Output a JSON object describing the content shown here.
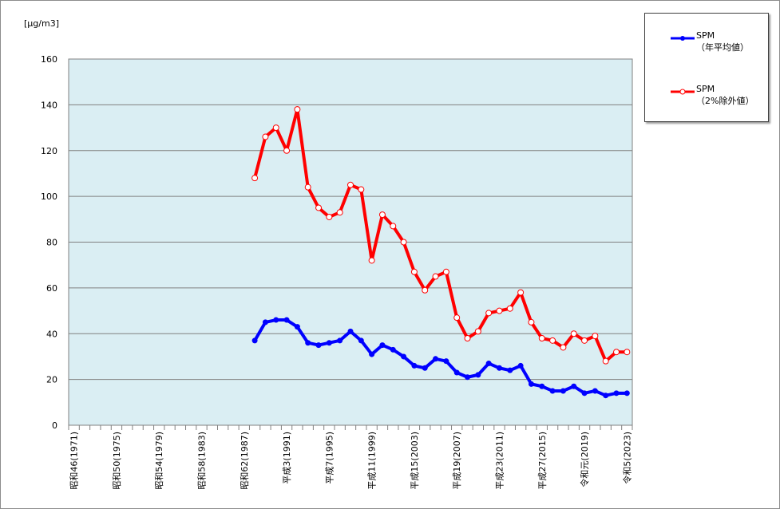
{
  "chart_data": {
    "type": "line",
    "unit_label": "[μg/m3]",
    "ylim": [
      0,
      160
    ],
    "yticks": [
      0,
      20,
      40,
      60,
      80,
      100,
      120,
      140,
      160
    ],
    "grid": true,
    "legend_position": "top-right",
    "x_start_year": 1971,
    "x_end_year": 2023,
    "x_tick_labels": [
      {
        "year": 1971,
        "label": "昭和46(1971)"
      },
      {
        "year": 1975,
        "label": "昭和50(1975)"
      },
      {
        "year": 1979,
        "label": "昭和54(1979)"
      },
      {
        "year": 1983,
        "label": "昭和58(1983)"
      },
      {
        "year": 1987,
        "label": "昭和62(1987)"
      },
      {
        "year": 1991,
        "label": "平成3(1991)"
      },
      {
        "year": 1995,
        "label": "平成7(1995)"
      },
      {
        "year": 1999,
        "label": "平成11(1999)"
      },
      {
        "year": 2003,
        "label": "平成15(2003)"
      },
      {
        "year": 2007,
        "label": "平成19(2007)"
      },
      {
        "year": 2011,
        "label": "平成23(2011)"
      },
      {
        "year": 2015,
        "label": "平成27(2015)"
      },
      {
        "year": 2019,
        "label": "令和元(2019)"
      },
      {
        "year": 2023,
        "label": "令和5(2023)"
      }
    ],
    "x": [
      1988,
      1989,
      1990,
      1991,
      1992,
      1993,
      1994,
      1995,
      1996,
      1997,
      1998,
      1999,
      2000,
      2001,
      2002,
      2003,
      2004,
      2005,
      2006,
      2007,
      2008,
      2009,
      2010,
      2011,
      2012,
      2013,
      2014,
      2015,
      2016,
      2017,
      2018,
      2019,
      2020,
      2021,
      2022,
      2023
    ],
    "series": [
      {
        "name": "SPM",
        "name_sub": "（年平均値）",
        "color": "#0000ff",
        "marker": "filled-circle",
        "values": [
          37,
          45,
          46,
          46,
          43,
          36,
          35,
          36,
          37,
          41,
          37,
          31,
          35,
          33,
          30,
          26,
          25,
          29,
          28,
          23,
          21,
          22,
          27,
          25,
          24,
          26,
          18,
          17,
          15,
          15,
          17,
          14,
          15,
          13,
          14,
          14
        ]
      },
      {
        "name": "SPM",
        "name_sub": "（2%除外値）",
        "color": "#ff0000",
        "marker": "open-circle",
        "values": [
          108,
          126,
          130,
          120,
          138,
          104,
          95,
          91,
          93,
          105,
          103,
          72,
          92,
          87,
          80,
          67,
          59,
          65,
          67,
          47,
          38,
          41,
          49,
          50,
          51,
          58,
          45,
          38,
          37,
          34,
          40,
          37,
          39,
          28,
          32,
          32
        ]
      }
    ]
  }
}
